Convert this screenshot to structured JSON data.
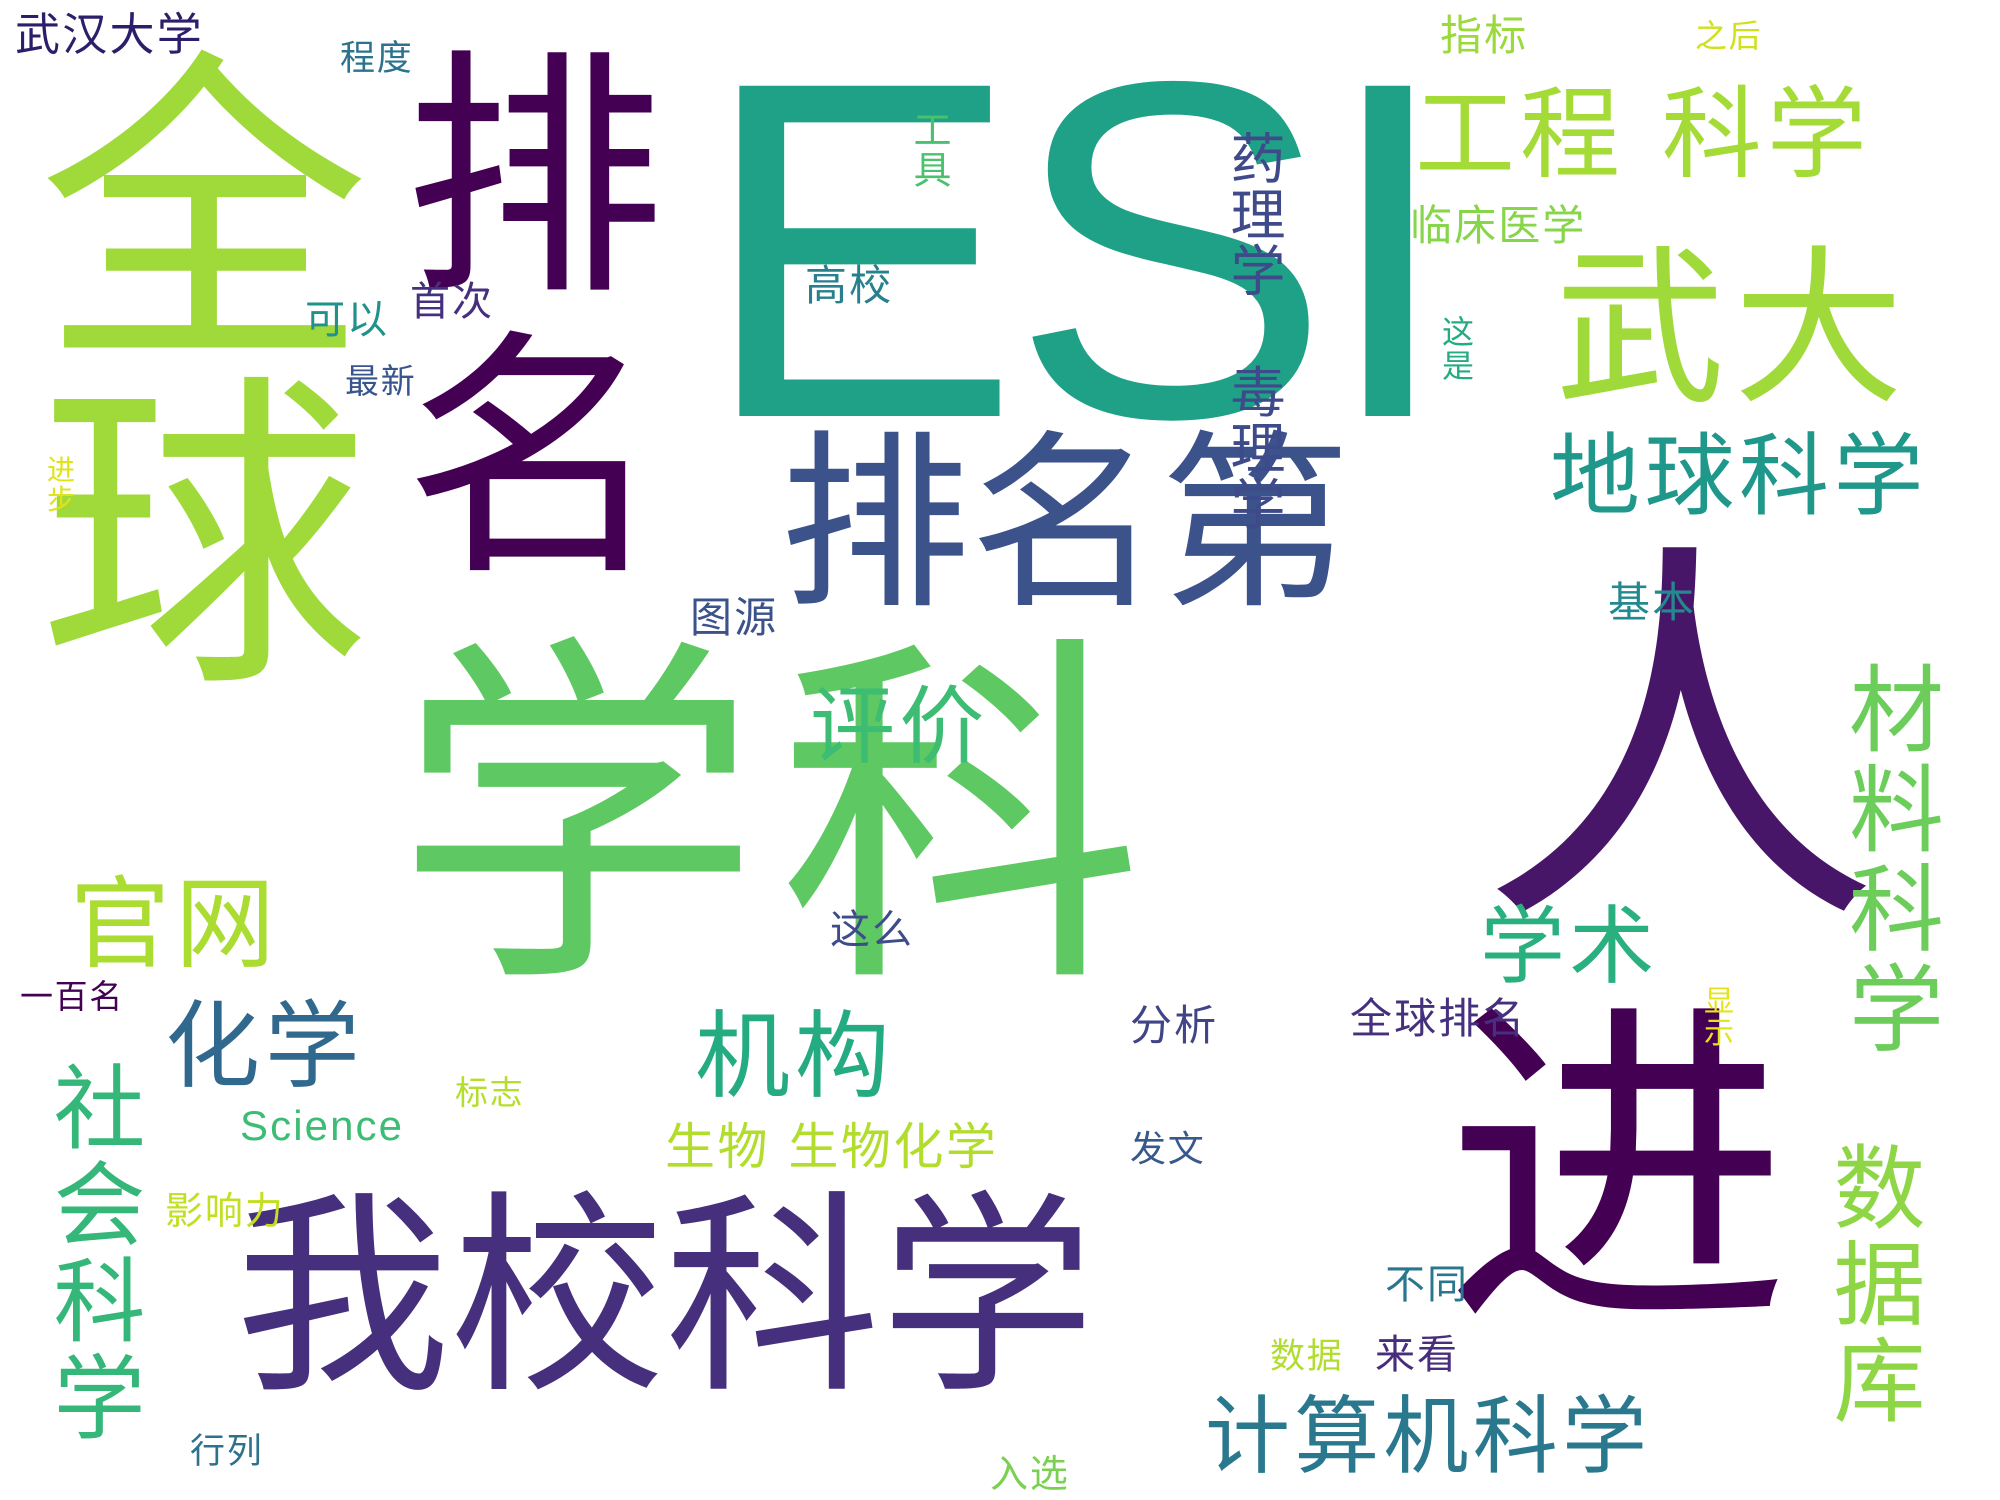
{
  "words": [
    {
      "text": "ESI",
      "color": "#1fa187"
    },
    {
      "text": "学科",
      "color": "#5ec962"
    },
    {
      "text": "全球",
      "color": "#9fda3a"
    },
    {
      "text": "排名",
      "color": "#440154"
    },
    {
      "text": "人",
      "color": "#481668"
    },
    {
      "text": "进",
      "color": "#440154"
    },
    {
      "text": "排名第",
      "color": "#3b528b"
    },
    {
      "text": "我校科学",
      "color": "#46307d"
    },
    {
      "text": "武大",
      "color": "#9fda3a"
    },
    {
      "text": "工程 科学",
      "color": "#a5db36"
    },
    {
      "text": "地球科学",
      "color": "#1f988b"
    },
    {
      "text": "材料科学",
      "color": "#6ccd5a"
    },
    {
      "text": "数据库",
      "color": "#8ed645"
    },
    {
      "text": "社会科学",
      "color": "#35b779"
    },
    {
      "text": "计算机科学",
      "color": "#2a788e"
    },
    {
      "text": "官网",
      "color": "#aadc32"
    },
    {
      "text": "化学",
      "color": "#31688e"
    },
    {
      "text": "机构",
      "color": "#25ab82"
    },
    {
      "text": "学术",
      "color": "#2ab07f"
    },
    {
      "text": "评价",
      "color": "#3dbc74"
    },
    {
      "text": "药理学 毒理学",
      "color": "#3e4a89"
    },
    {
      "text": "生物 生物化学",
      "color": "#b2dd2d"
    },
    {
      "text": "武汉大学",
      "color": "#2d1e6b"
    },
    {
      "text": "程度",
      "color": "#2c728e"
    },
    {
      "text": "指标",
      "color": "#9bd93c"
    },
    {
      "text": "之后",
      "color": "#d0e11c"
    },
    {
      "text": "工具",
      "color": "#4ac16d"
    },
    {
      "text": "临床医学",
      "color": "#87d549"
    },
    {
      "text": "高校",
      "color": "#27808e"
    },
    {
      "text": "可以",
      "color": "#21918c"
    },
    {
      "text": "首次",
      "color": "#46307d"
    },
    {
      "text": "最新",
      "color": "#39568c"
    },
    {
      "text": "这是",
      "color": "#25ab82"
    },
    {
      "text": "进步",
      "color": "#dfe318"
    },
    {
      "text": "图源",
      "color": "#3b528b"
    },
    {
      "text": "基本",
      "color": "#23898e"
    },
    {
      "text": "这么",
      "color": "#3e4c8a"
    },
    {
      "text": "一百名",
      "color": "#440154"
    },
    {
      "text": "分析",
      "color": "#414487"
    },
    {
      "text": "全球排名",
      "color": "#46307d"
    },
    {
      "text": "显示",
      "color": "#e5e419"
    },
    {
      "text": "标志",
      "color": "#b5de2b"
    },
    {
      "text": "Science",
      "color": "#3dbc74"
    },
    {
      "text": "影响力",
      "color": "#c2df23"
    },
    {
      "text": "发文",
      "color": "#38598c"
    },
    {
      "text": "不同",
      "color": "#2a768e"
    },
    {
      "text": "数据",
      "color": "#b0dd2f"
    },
    {
      "text": "来看",
      "color": "#472d7b"
    },
    {
      "text": "行列",
      "color": "#2d718e"
    },
    {
      "text": "入选",
      "color": "#7ad151"
    }
  ]
}
